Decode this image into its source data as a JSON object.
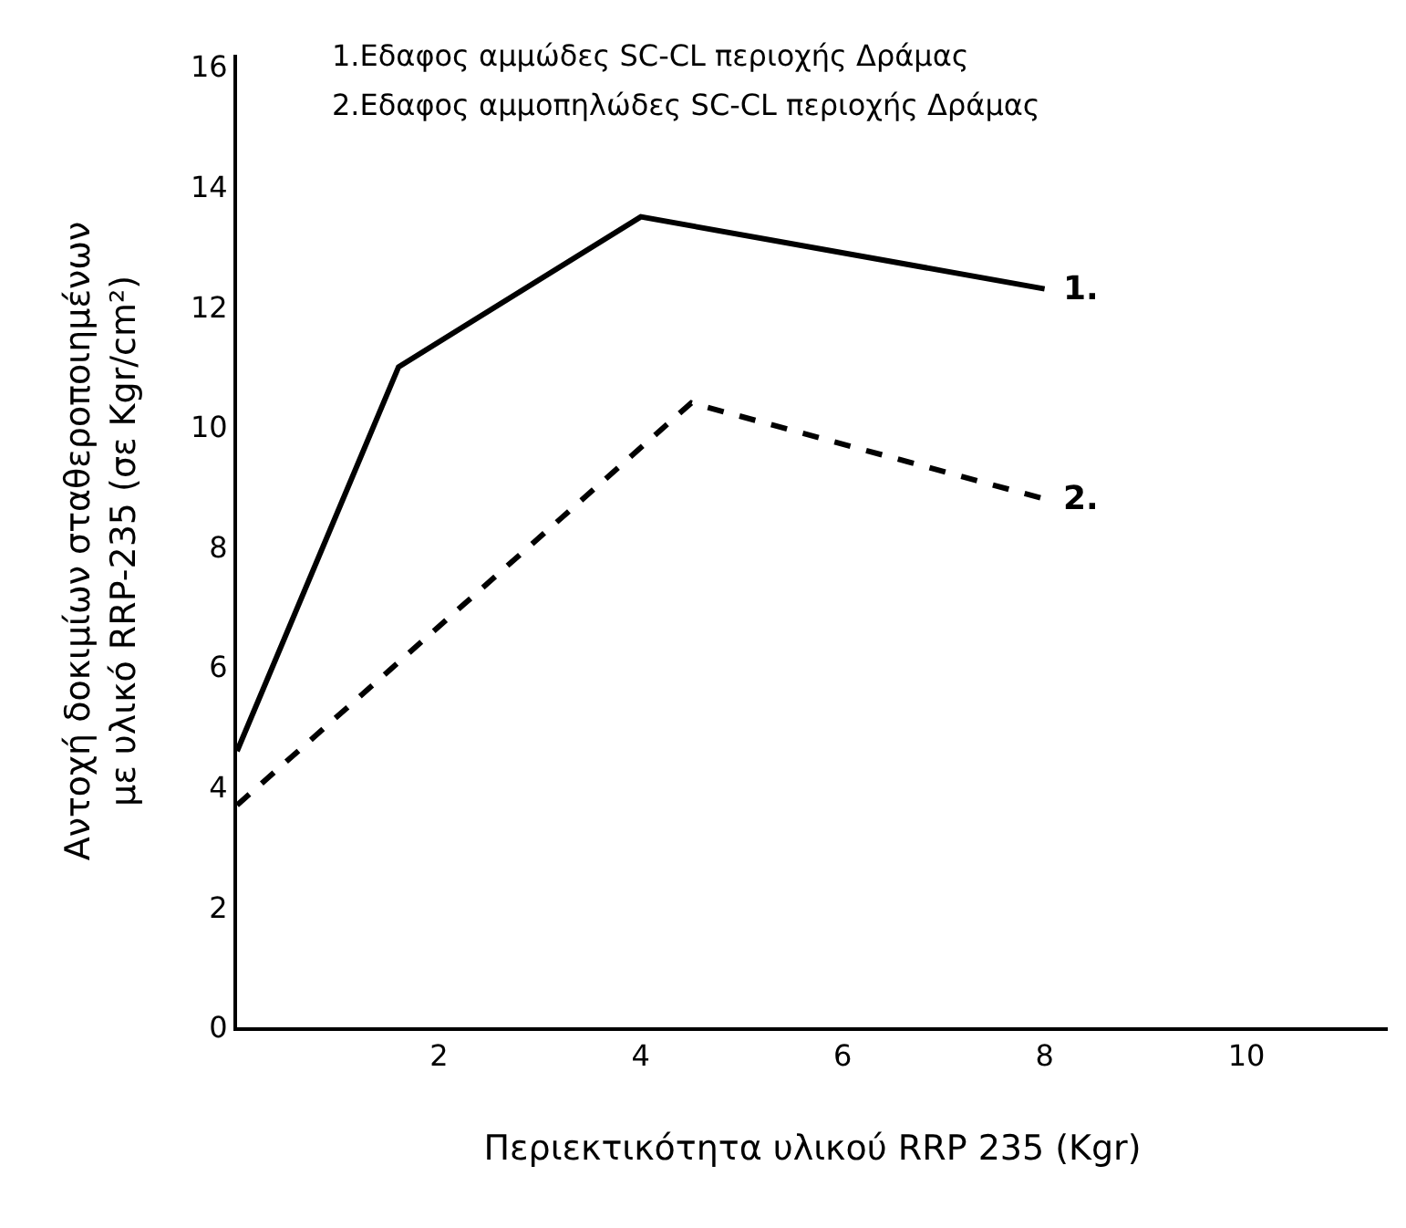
{
  "chart_data": {
    "type": "line",
    "xlabel": "Περιεκτικότητα υλικού RRP 235 (Kgr)",
    "ylabel": "Αντοχή δοκιμίων σταθεροποιημένων\nμε υλικό RRP-235 (σε Kgr/cm²)",
    "series": [
      {
        "color": "#000000",
        "x": [
          0,
          1.6,
          4,
          8
        ],
        "values": [
          4.6,
          11,
          13.5,
          12.3
        ],
        "line_style": "solid"
      },
      {
        "color": "#000000",
        "x": [
          0,
          4.5,
          8
        ],
        "values": [
          3.7,
          10.4,
          8.8
        ],
        "line_style": "dashed"
      }
    ],
    "xlim": [
      0,
      11.4
    ],
    "xticks": [
      2,
      4,
      6,
      8,
      10
    ],
    "ylim": [
      0,
      16.2
    ],
    "yticks": [
      0,
      2,
      4,
      6,
      8,
      10,
      12,
      14,
      16
    ],
    "annotations": [
      "1.Εδαφος αμμώδες SC-CL περιοχής Δράμας",
      "2.Εδαφος αμμοπηλώδες SC-CL περιοχής Δράμας",
      {
        "text": "1.",
        "x": 8,
        "y": 12.3
      },
      {
        "text": "2.",
        "x": 8,
        "y": 8.8
      }
    ],
    "marker": "none"
  }
}
